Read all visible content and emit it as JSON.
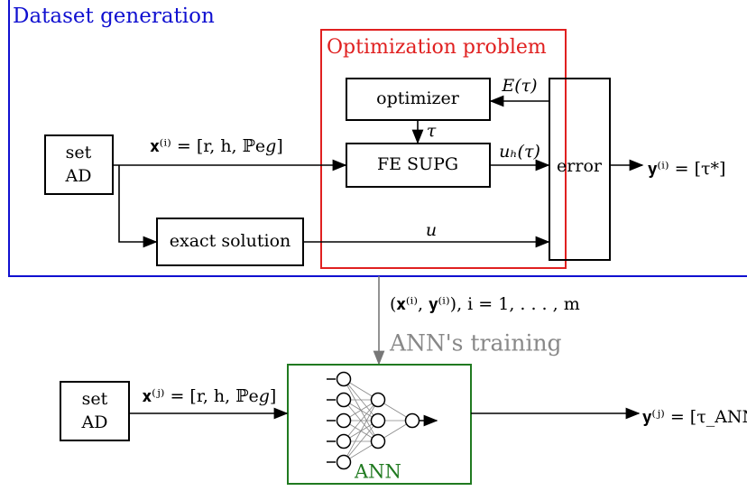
{
  "regions": {
    "dataset_generation": "Dataset generation",
    "optimization_problem": "Optimization problem",
    "training": "ANN's training",
    "ann": "ANN"
  },
  "nodes": {
    "set_ad_top": [
      "set",
      "AD"
    ],
    "optimizer": "optimizer",
    "fe_supg": "FE SUPG",
    "error": "error",
    "exact_solution": "exact solution",
    "set_ad_bottom": [
      "set",
      "AD"
    ]
  },
  "edges": {
    "x_i": "𝐱⁽ⁱ⁾ = [r, h, ℙe𝑔]",
    "tau": "τ",
    "e_tau": "E(τ)",
    "uh_tau": "uₕ(τ)",
    "u": "u",
    "y_i": "𝐲⁽ⁱ⁾ = [τ*]",
    "pairs": "(𝐱⁽ⁱ⁾, 𝐲⁽ⁱ⁾),  i = 1, . . . , m",
    "x_j": "𝐱⁽ʲ⁾ = [r, h, ℙe𝑔]",
    "y_j": "𝐲⁽ʲ⁾ = [τ_ANN]"
  }
}
